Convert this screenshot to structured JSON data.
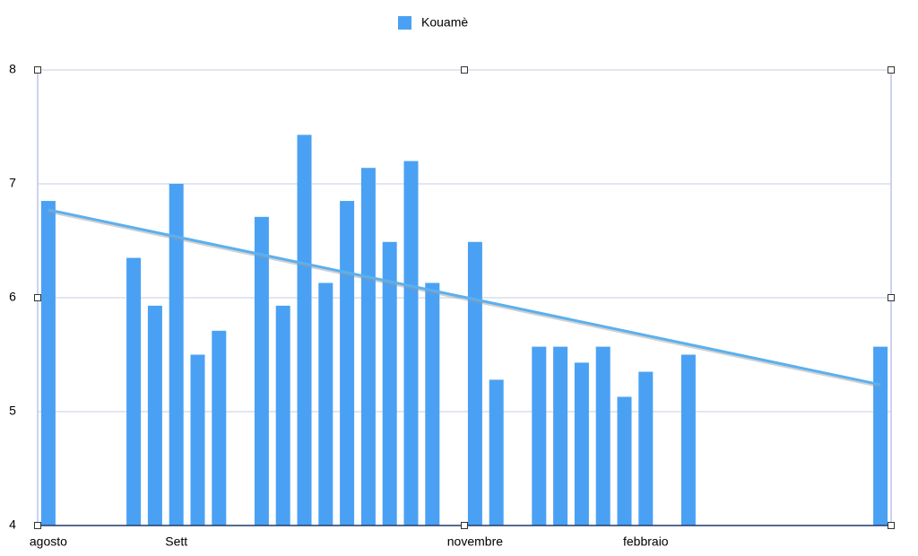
{
  "chart_data": {
    "type": "bar",
    "categories": [
      "agosto",
      null,
      null,
      null,
      null,
      null,
      "Sett",
      null,
      null,
      null,
      null,
      null,
      null,
      null,
      null,
      null,
      null,
      null,
      null,
      null,
      "novembre",
      null,
      null,
      null,
      null,
      null,
      null,
      null,
      "febbraio",
      null,
      null,
      null,
      null,
      null,
      null,
      null,
      null,
      null,
      null,
      null
    ],
    "series": [
      {
        "name": "Kouamè",
        "color": "#4aa1f3",
        "values": [
          6.85,
          null,
          null,
          null,
          6.35,
          5.93,
          7.0,
          5.5,
          5.71,
          null,
          6.71,
          5.93,
          7.43,
          6.13,
          6.85,
          7.14,
          6.49,
          7.2,
          6.13,
          null,
          6.49,
          5.28,
          null,
          5.57,
          5.57,
          5.43,
          5.57,
          5.13,
          5.35,
          null,
          5.5,
          null,
          null,
          null,
          null,
          null,
          null,
          null,
          null,
          5.57
        ]
      }
    ],
    "ylim": [
      4,
      8
    ],
    "yticks": [
      4,
      5,
      6,
      7,
      8
    ],
    "grid": true,
    "trendline": true,
    "legend": "top"
  }
}
